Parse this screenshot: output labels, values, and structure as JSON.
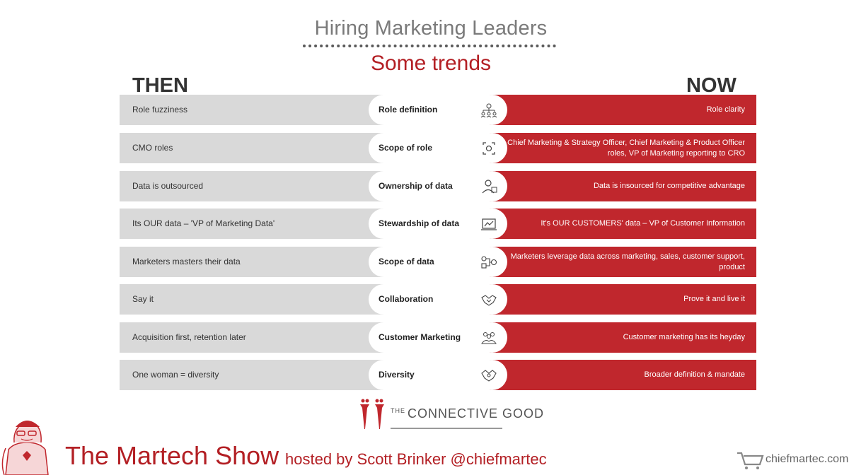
{
  "slide": {
    "title": "Hiring Marketing Leaders",
    "subtitle": "Some trends",
    "then_header": "THEN",
    "now_header": "NOW"
  },
  "rows": [
    {
      "then": "Role fuzziness",
      "aspect": "Role definition",
      "icon": "team-hierarchy-icon",
      "now": "Role clarity"
    },
    {
      "then": "CMO roles",
      "aspect": "Scope of role",
      "icon": "focus-frame-icon",
      "now": "Chief Marketing & Strategy Officer, Chief Marketing & Product Officer roles, VP of Marketing reporting to CRO"
    },
    {
      "then": "Data is outsourced",
      "aspect": "Ownership of data",
      "icon": "person-data-icon",
      "now": "Data is insourced for competitive advantage"
    },
    {
      "then": "Its OUR data – 'VP of Marketing Data'",
      "aspect": "Stewardship of data",
      "icon": "data-dashboard-icon",
      "now": "It's OUR CUSTOMERS' data – VP of Customer Information"
    },
    {
      "then": "Marketers masters their data",
      "aspect": "Scope of data",
      "icon": "data-flow-icon",
      "now": "Marketers leverage data across marketing, sales, customer support, product"
    },
    {
      "then": "Say it",
      "aspect": "Collaboration",
      "icon": "handshake-icon",
      "now": "Prove it and live it"
    },
    {
      "then": "Acquisition first, retention later",
      "aspect": "Customer Marketing",
      "icon": "customer-group-icon",
      "now": "Customer marketing has its heyday"
    },
    {
      "then": "One woman = diversity",
      "aspect": "Diversity",
      "icon": "diversity-handshake-icon",
      "now": "Broader definition & mandate"
    }
  ],
  "branding": {
    "connective_small": "THE",
    "connective_big": "CONNECTIVE GOOD",
    "show_title": "The Martech Show",
    "hosted_by": "hosted by Scott Brinker @chiefmartec",
    "site": "chiefmartec.com"
  },
  "colors": {
    "accent_red": "#c0272d",
    "title_red": "#b31f24",
    "then_gray": "#d9d9d9",
    "title_gray": "#7a7a7a"
  }
}
